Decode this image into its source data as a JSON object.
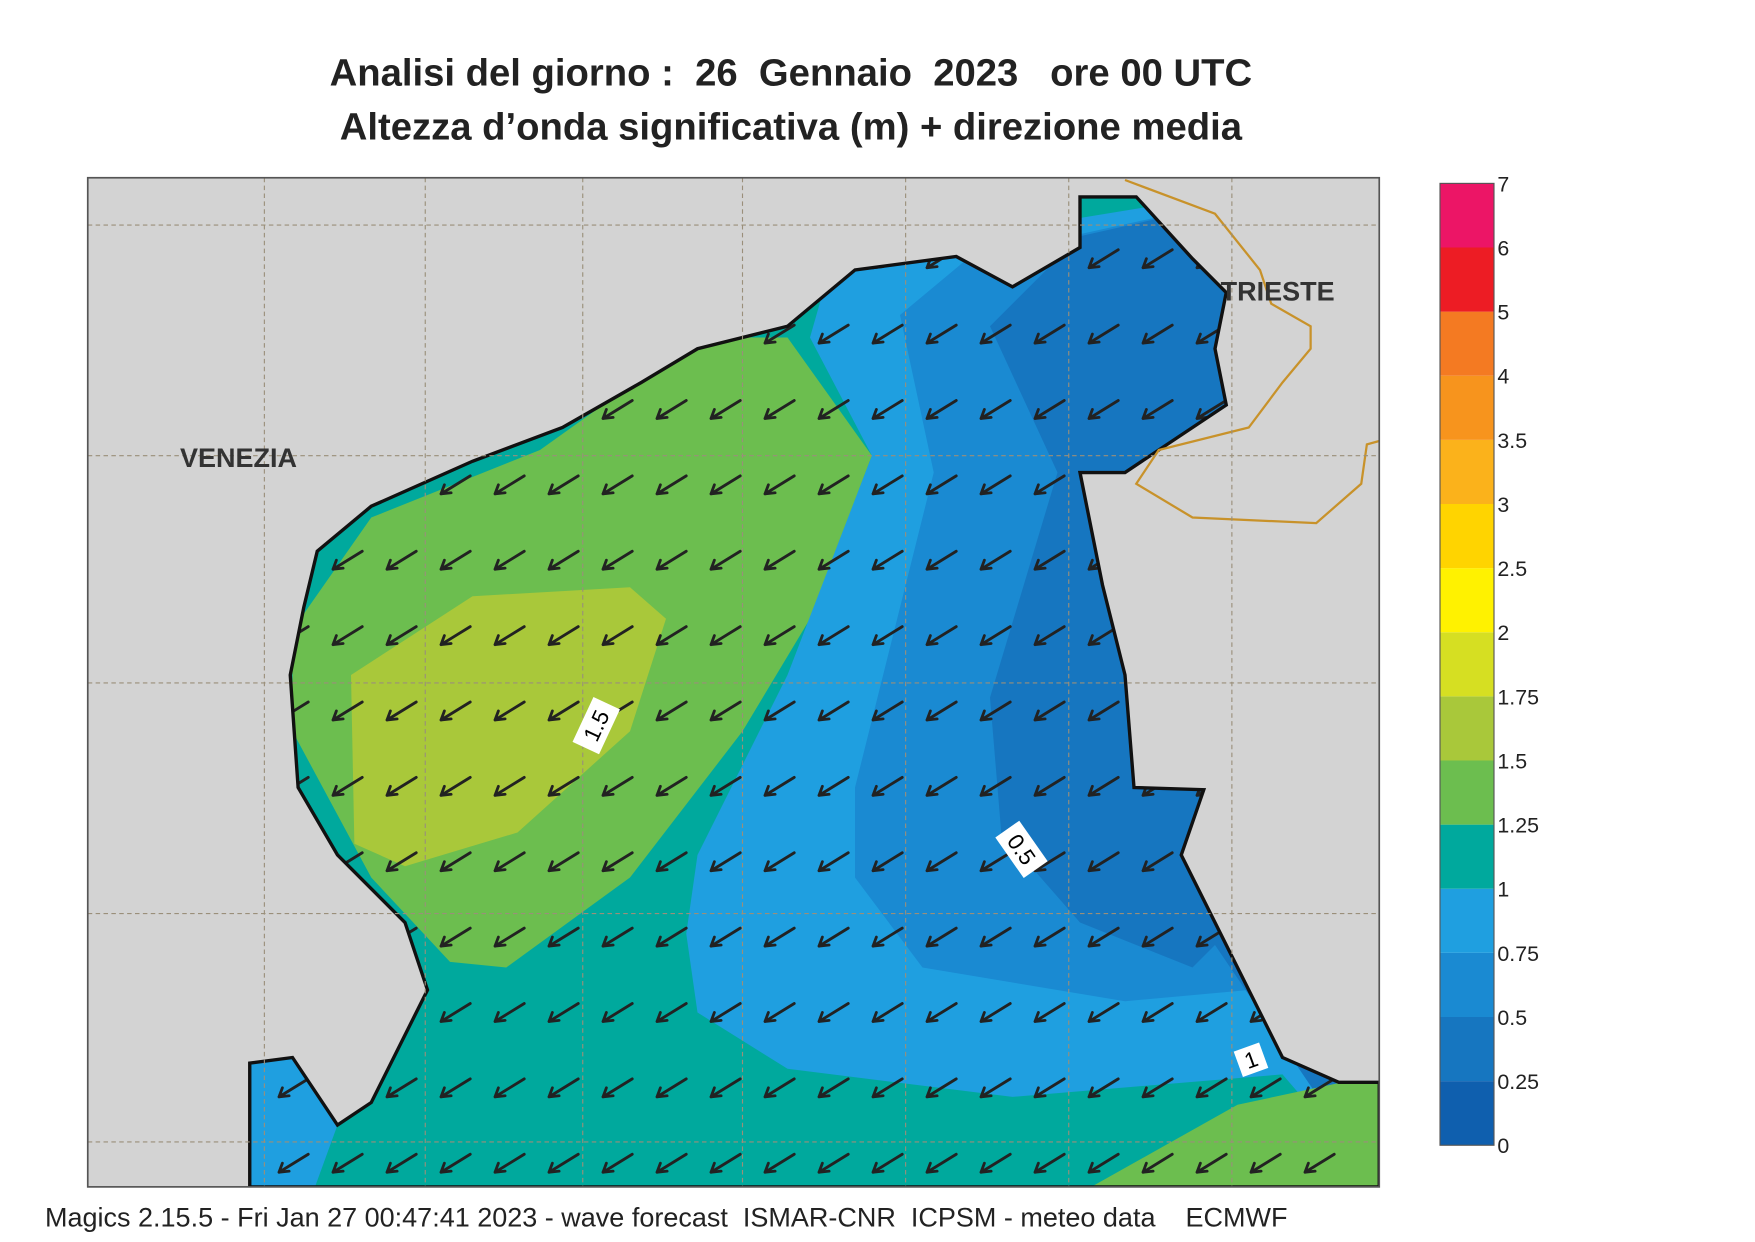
{
  "title": "Analisi del giorno :  26  Gennaio  2023   ore 00 UTC",
  "subtitle": "Altezza d’onda significativa (m) + direzione media",
  "map": {
    "places": [
      "VENEZIA",
      "TRIESTE"
    ],
    "contour_labels": [
      "1.5",
      "0.5",
      "1"
    ]
  },
  "colorbar": {
    "levels": [
      0,
      0.25,
      0.5,
      0.75,
      1,
      1.25,
      1.5,
      1.75,
      2,
      2.5,
      3,
      3.5,
      4,
      5,
      6,
      7
    ],
    "colors": [
      "#0f5fae",
      "#1676c0",
      "#1a8ad2",
      "#1f9fe0",
      "#00a99d",
      "#6cbe4f",
      "#a9c83a",
      "#d6df22",
      "#fff200",
      "#ffd400",
      "#fbb21b",
      "#f7941d",
      "#f47a22",
      "#ed1c24",
      "#ec1566"
    ]
  },
  "footer": "Magics 2.15.5 - Fri Jan 27 00:47:41 2023 - wave forecast  ISMAR-CNR  ICPSM - meteo data    ECMWF"
}
